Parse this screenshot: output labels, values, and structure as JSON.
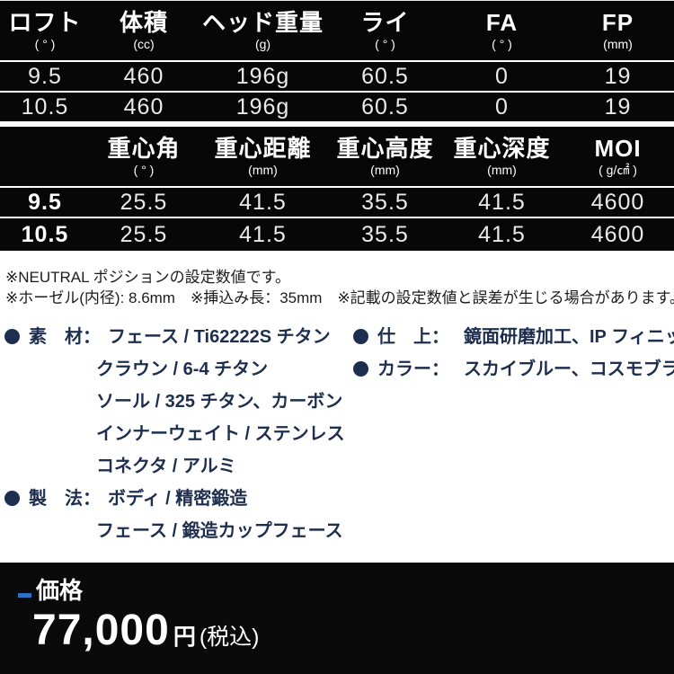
{
  "table1": {
    "headers": [
      {
        "label": "ロフト",
        "unit": "( ° )"
      },
      {
        "label": "体積",
        "unit": "(cc)"
      },
      {
        "label": "ヘッド重量",
        "unit": "(g)"
      },
      {
        "label": "ライ",
        "unit": "( ° )"
      },
      {
        "label": "FA",
        "unit": "( ° )"
      },
      {
        "label": "FP",
        "unit": "(mm)"
      }
    ],
    "rows": [
      [
        "9.5",
        "460",
        "196g",
        "60.5",
        "0",
        "19"
      ],
      [
        "10.5",
        "460",
        "196g",
        "60.5",
        "0",
        "19"
      ]
    ]
  },
  "table2": {
    "headers": [
      {
        "label": "",
        "unit": ""
      },
      {
        "label": "重心角",
        "unit": "( ° )"
      },
      {
        "label": "重心距離",
        "unit": "(mm)"
      },
      {
        "label": "重心高度",
        "unit": "(mm)"
      },
      {
        "label": "重心深度",
        "unit": "(mm)"
      },
      {
        "label": "MOI",
        "unit": "( g/㎠ )"
      }
    ],
    "rows": [
      [
        "9.5",
        "25.5",
        "41.5",
        "35.5",
        "41.5",
        "4600"
      ],
      [
        "10.5",
        "25.5",
        "41.5",
        "35.5",
        "41.5",
        "4600"
      ]
    ]
  },
  "notes": [
    "※NEUTRAL ポジションの設定数値です。",
    "※ホーゼル(内径): 8.6mm　※挿込み長：35mm　※記載の設定数値と誤差が生じる場合があります。"
  ],
  "specs_left": [
    {
      "label": "素　材：",
      "items": [
        "フェース / Ti62222S チタン",
        "クラウン / 6-4 チタン",
        "ソール / 325 チタン、カーボン",
        "インナーウェイト / ステンレス",
        "コネクタ / アルミ"
      ]
    },
    {
      "label": "製　法：",
      "items": [
        "ボディ / 精密鍛造",
        "フェース / 鍛造カップフェース"
      ]
    }
  ],
  "specs_right": [
    {
      "label": "仕　上：",
      "value": "鏡面研磨加工、IP フィニッシュ"
    },
    {
      "label": "カラー：",
      "value": "スカイブルー、コスモブラック"
    }
  ],
  "price": {
    "label": "価格",
    "amount": "77,000",
    "currency": "円",
    "tax_note": "(税込)"
  },
  "colors": {
    "accent_blue": "#2e6fc1",
    "navy_text": "#1d2e4f",
    "table_bg": "#070707"
  }
}
